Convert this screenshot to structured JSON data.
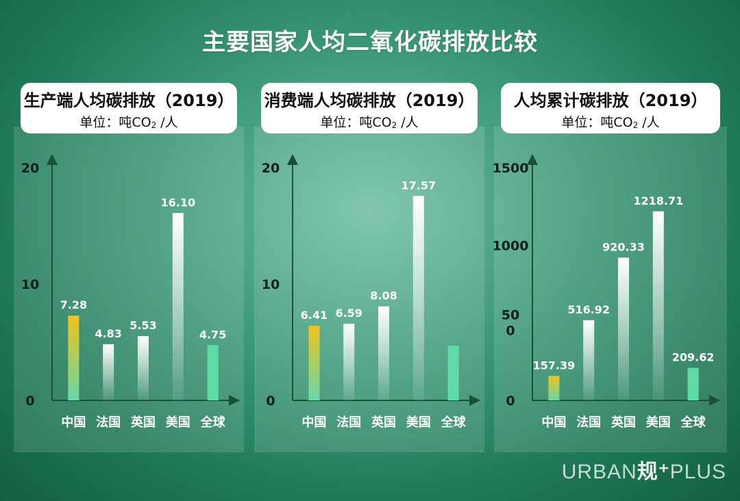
{
  "title": "主要国家人均二氧化碳排放比较",
  "brand": {
    "left": "URBAN",
    "mark": "规⁺",
    "right": "PLUS"
  },
  "colors": {
    "china_top": "#f2c21a",
    "china_bottom": "#66d9a6",
    "global": "#5fdba5",
    "bar_white": "#ffffff",
    "axis": "#1b4f36"
  },
  "chart_data": [
    {
      "type": "bar",
      "title": "生产端人均碳排放（2019）",
      "unit_prefix": "单位：吨CO",
      "unit_sub": "2",
      "unit_suffix": " /人",
      "categories": [
        "中国",
        "法国",
        "英国",
        "美国",
        "全球"
      ],
      "values": [
        7.28,
        4.83,
        5.53,
        16.1,
        4.75
      ],
      "value_labels": [
        "7.28",
        "4.83",
        "5.53",
        "16.10",
        "4.75"
      ],
      "ylim": [
        0,
        20
      ],
      "ticks": [
        0,
        10,
        20
      ],
      "tick_labels": [
        "0",
        "10",
        "20"
      ],
      "show_value": [
        true,
        true,
        true,
        true,
        true
      ]
    },
    {
      "type": "bar",
      "title": "消费端人均碳排放（2019）",
      "unit_prefix": "单位：吨CO",
      "unit_sub": "2",
      "unit_suffix": " /人",
      "categories": [
        "中国",
        "法国",
        "英国",
        "美国",
        "全球"
      ],
      "values": [
        6.41,
        6.59,
        8.08,
        17.57,
        4.7
      ],
      "value_labels": [
        "6.41",
        "6.59",
        "8.08",
        "17.57",
        ""
      ],
      "ylim": [
        0,
        20
      ],
      "ticks": [
        0,
        10,
        20
      ],
      "tick_labels": [
        "0",
        "10",
        "20"
      ],
      "show_value": [
        true,
        true,
        true,
        true,
        false
      ]
    },
    {
      "type": "bar",
      "title": "人均累计碳排放（2019）",
      "unit_prefix": "单位：吨CO",
      "unit_sub": "2",
      "unit_suffix": " /人",
      "categories": [
        "中国",
        "法国",
        "英国",
        "美国",
        "全球"
      ],
      "values": [
        157.39,
        516.92,
        920.33,
        1218.71,
        209.62
      ],
      "value_labels": [
        "157.39",
        "516.92",
        "920.33",
        "1218.71",
        "209.62"
      ],
      "ylim": [
        0,
        1500
      ],
      "ticks": [
        0,
        500,
        1000,
        1500
      ],
      "tick_labels": [
        "0",
        "50\n0",
        "1000",
        "1500"
      ],
      "show_value": [
        true,
        true,
        true,
        true,
        true
      ]
    }
  ]
}
